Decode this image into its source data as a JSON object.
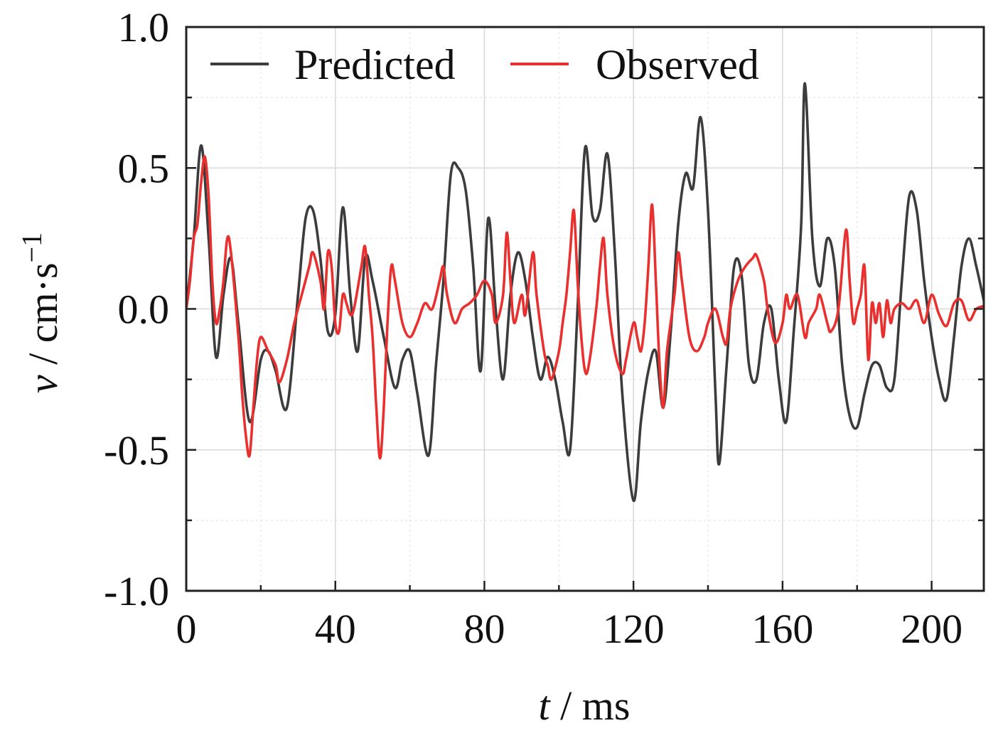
{
  "chart_data": {
    "type": "line",
    "title": "",
    "xlabel": {
      "symbol": "t",
      "unit": " / ms"
    },
    "ylabel": {
      "symbol": "v",
      "unit": " / cm·s",
      "unit_exponent": "−1"
    },
    "xlim": [
      0,
      214
    ],
    "ylim": [
      -1.0,
      1.0
    ],
    "x_ticks": [
      0,
      40,
      80,
      120,
      160,
      200
    ],
    "x_tick_labels": [
      "0",
      "40",
      "80",
      "120",
      "160",
      "200"
    ],
    "y_ticks": [
      -1.0,
      -0.5,
      0.0,
      0.5,
      1.0
    ],
    "y_tick_labels": [
      "-1.0",
      "-0.5",
      "0.0",
      "0.5",
      "1.0"
    ],
    "grid": true,
    "legend": {
      "placement": "top-left"
    },
    "series": [
      {
        "name": "Predicted",
        "color": "#3c3c3c",
        "points": [
          [
            0,
            0.0
          ],
          [
            2,
            0.25
          ],
          [
            4,
            0.58
          ],
          [
            6,
            0.25
          ],
          [
            8,
            -0.17
          ],
          [
            10,
            0.05
          ],
          [
            12,
            0.18
          ],
          [
            14,
            -0.05
          ],
          [
            17,
            -0.4
          ],
          [
            20,
            -0.18
          ],
          [
            22,
            -0.15
          ],
          [
            24,
            -0.22
          ],
          [
            27,
            -0.35
          ],
          [
            30,
            0.05
          ],
          [
            32,
            0.32
          ],
          [
            34,
            0.35
          ],
          [
            36,
            0.18
          ],
          [
            38,
            -0.08
          ],
          [
            40,
            -0.02
          ],
          [
            42,
            0.36
          ],
          [
            44,
            0.05
          ],
          [
            46,
            -0.15
          ],
          [
            48,
            0.18
          ],
          [
            50,
            0.1
          ],
          [
            53,
            -0.1
          ],
          [
            56,
            -0.28
          ],
          [
            58,
            -0.18
          ],
          [
            60,
            -0.15
          ],
          [
            62,
            -0.3
          ],
          [
            65,
            -0.52
          ],
          [
            67,
            -0.2
          ],
          [
            69,
            0.1
          ],
          [
            71,
            0.48
          ],
          [
            73,
            0.5
          ],
          [
            75,
            0.42
          ],
          [
            77,
            0.15
          ],
          [
            79,
            -0.22
          ],
          [
            81,
            0.32
          ],
          [
            83,
            0.0
          ],
          [
            85,
            -0.25
          ],
          [
            87,
            0.05
          ],
          [
            89,
            0.2
          ],
          [
            91,
            0.1
          ],
          [
            93,
            -0.1
          ],
          [
            95,
            -0.25
          ],
          [
            97,
            -0.17
          ],
          [
            99,
            -0.25
          ],
          [
            101,
            -0.4
          ],
          [
            103,
            -0.5
          ],
          [
            105,
            0.0
          ],
          [
            107,
            0.57
          ],
          [
            109,
            0.33
          ],
          [
            111,
            0.35
          ],
          [
            113,
            0.55
          ],
          [
            115,
            0.2
          ],
          [
            117,
            -0.3
          ],
          [
            120,
            -0.68
          ],
          [
            122,
            -0.4
          ],
          [
            124,
            -0.22
          ],
          [
            126,
            -0.15
          ],
          [
            128,
            -0.35
          ],
          [
            130,
            -0.08
          ],
          [
            132,
            0.3
          ],
          [
            134,
            0.48
          ],
          [
            136,
            0.43
          ],
          [
            138,
            0.68
          ],
          [
            140,
            0.35
          ],
          [
            142,
            -0.3
          ],
          [
            143,
            -0.55
          ],
          [
            145,
            -0.2
          ],
          [
            147,
            0.15
          ],
          [
            149,
            0.12
          ],
          [
            151,
            -0.2
          ],
          [
            153,
            -0.25
          ],
          [
            155,
            -0.05
          ],
          [
            157,
            0.0
          ],
          [
            159,
            -0.25
          ],
          [
            161,
            -0.4
          ],
          [
            163,
            -0.08
          ],
          [
            165,
            0.3
          ],
          [
            166,
            0.8
          ],
          [
            168,
            0.25
          ],
          [
            170,
            0.08
          ],
          [
            172,
            0.25
          ],
          [
            174,
            0.15
          ],
          [
            176,
            -0.2
          ],
          [
            178,
            -0.38
          ],
          [
            180,
            -0.42
          ],
          [
            182,
            -0.3
          ],
          [
            184,
            -0.2
          ],
          [
            186,
            -0.2
          ],
          [
            188,
            -0.28
          ],
          [
            190,
            -0.25
          ],
          [
            192,
            0.1
          ],
          [
            194,
            0.4
          ],
          [
            196,
            0.35
          ],
          [
            198,
            0.1
          ],
          [
            200,
            -0.1
          ],
          [
            202,
            -0.25
          ],
          [
            204,
            -0.32
          ],
          [
            206,
            -0.1
          ],
          [
            208,
            0.15
          ],
          [
            210,
            0.25
          ],
          [
            212,
            0.15
          ],
          [
            214,
            0.03
          ]
        ]
      },
      {
        "name": "Observed",
        "color": "#e8312f",
        "points": [
          [
            0,
            0.0
          ],
          [
            1,
            0.1
          ],
          [
            2,
            0.25
          ],
          [
            3,
            0.3
          ],
          [
            4,
            0.45
          ],
          [
            5,
            0.54
          ],
          [
            6,
            0.4
          ],
          [
            7,
            0.1
          ],
          [
            8,
            -0.05
          ],
          [
            9,
            0.0
          ],
          [
            10,
            0.1
          ],
          [
            11,
            0.25
          ],
          [
            12,
            0.2
          ],
          [
            14,
            -0.1
          ],
          [
            15,
            -0.3
          ],
          [
            16,
            -0.45
          ],
          [
            17,
            -0.52
          ],
          [
            18,
            -0.35
          ],
          [
            19,
            -0.18
          ],
          [
            20,
            -0.1
          ],
          [
            22,
            -0.15
          ],
          [
            24,
            -0.2
          ],
          [
            25,
            -0.26
          ],
          [
            27,
            -0.18
          ],
          [
            29,
            -0.05
          ],
          [
            31,
            0.05
          ],
          [
            33,
            0.15
          ],
          [
            34,
            0.2
          ],
          [
            36,
            0.1
          ],
          [
            37,
            0.0
          ],
          [
            38,
            0.2
          ],
          [
            39,
            0.15
          ],
          [
            40,
            -0.05
          ],
          [
            41,
            -0.08
          ],
          [
            42,
            0.05
          ],
          [
            43,
            0.02
          ],
          [
            44,
            -0.02
          ],
          [
            45,
            0.0
          ],
          [
            47,
            0.15
          ],
          [
            48,
            0.22
          ],
          [
            49,
            0.05
          ],
          [
            50,
            -0.1
          ],
          [
            51,
            -0.35
          ],
          [
            52,
            -0.53
          ],
          [
            53,
            -0.35
          ],
          [
            54,
            -0.05
          ],
          [
            55,
            0.15
          ],
          [
            56,
            0.1
          ],
          [
            58,
            -0.05
          ],
          [
            60,
            -0.1
          ],
          [
            62,
            -0.05
          ],
          [
            64,
            0.02
          ],
          [
            66,
            0.0
          ],
          [
            68,
            0.1
          ],
          [
            69,
            0.15
          ],
          [
            70,
            0.05
          ],
          [
            72,
            -0.05
          ],
          [
            74,
            0.0
          ],
          [
            76,
            0.02
          ],
          [
            78,
            0.05
          ],
          [
            80,
            0.1
          ],
          [
            82,
            0.05
          ],
          [
            83,
            -0.05
          ],
          [
            85,
            0.05
          ],
          [
            86,
            0.27
          ],
          [
            87,
            0.1
          ],
          [
            88,
            -0.05
          ],
          [
            90,
            0.05
          ],
          [
            91,
            -0.02
          ],
          [
            93,
            0.2
          ],
          [
            94,
            0.05
          ],
          [
            96,
            -0.15
          ],
          [
            97,
            -0.2
          ],
          [
            98,
            -0.25
          ],
          [
            100,
            -0.15
          ],
          [
            101,
            -0.05
          ],
          [
            102,
            0.05
          ],
          [
            103,
            0.2
          ],
          [
            104,
            0.35
          ],
          [
            105,
            0.1
          ],
          [
            106,
            -0.1
          ],
          [
            107,
            -0.22
          ],
          [
            108,
            -0.2
          ],
          [
            110,
            0.0
          ],
          [
            111,
            0.15
          ],
          [
            112,
            0.25
          ],
          [
            113,
            0.05
          ],
          [
            115,
            -0.15
          ],
          [
            117,
            -0.23
          ],
          [
            118,
            -0.18
          ],
          [
            120,
            -0.05
          ],
          [
            121,
            -0.1
          ],
          [
            122,
            -0.15
          ],
          [
            123,
            -0.05
          ],
          [
            124,
            0.15
          ],
          [
            125,
            0.37
          ],
          [
            126,
            0.1
          ],
          [
            127,
            -0.2
          ],
          [
            128,
            -0.35
          ],
          [
            129,
            -0.15
          ],
          [
            131,
            0.05
          ],
          [
            132,
            0.2
          ],
          [
            133,
            0.1
          ],
          [
            135,
            -0.1
          ],
          [
            137,
            -0.15
          ],
          [
            139,
            -0.1
          ],
          [
            140,
            -0.05
          ],
          [
            142,
            0.0
          ],
          [
            144,
            -0.1
          ],
          [
            145,
            -0.12
          ],
          [
            146,
            0.0
          ],
          [
            148,
            0.1
          ],
          [
            150,
            0.15
          ],
          [
            152,
            0.18
          ],
          [
            153,
            0.19
          ],
          [
            155,
            0.1
          ],
          [
            156,
            0.0
          ],
          [
            158,
            -0.12
          ],
          [
            160,
            -0.05
          ],
          [
            161,
            0.05
          ],
          [
            162,
            0.0
          ],
          [
            164,
            0.05
          ],
          [
            166,
            -0.1
          ],
          [
            167,
            -0.05
          ],
          [
            169,
            0.0
          ],
          [
            170,
            0.05
          ],
          [
            172,
            -0.05
          ],
          [
            173,
            -0.08
          ],
          [
            175,
            0.0
          ],
          [
            177,
            0.28
          ],
          [
            178,
            0.1
          ],
          [
            179,
            -0.05
          ],
          [
            180,
            0.0
          ],
          [
            181,
            0.05
          ],
          [
            182,
            0.15
          ],
          [
            183,
            -0.18
          ],
          [
            184,
            0.02
          ],
          [
            185,
            -0.05
          ],
          [
            186,
            0.02
          ],
          [
            187,
            -0.1
          ],
          [
            188,
            0.03
          ],
          [
            189,
            -0.05
          ],
          [
            190,
            0.0
          ],
          [
            192,
            0.02
          ],
          [
            194,
            0.0
          ],
          [
            196,
            0.03
          ],
          [
            198,
            -0.05
          ],
          [
            200,
            0.05
          ],
          [
            202,
            -0.02
          ],
          [
            204,
            -0.06
          ],
          [
            206,
            0.02
          ],
          [
            208,
            0.03
          ],
          [
            210,
            -0.04
          ],
          [
            212,
            0.0
          ],
          [
            214,
            0.01
          ]
        ]
      }
    ]
  },
  "colors": {
    "predicted": "#3c3c3c",
    "observed": "#e8312f",
    "frame": "#222222",
    "grid": "#d9d9d9"
  }
}
